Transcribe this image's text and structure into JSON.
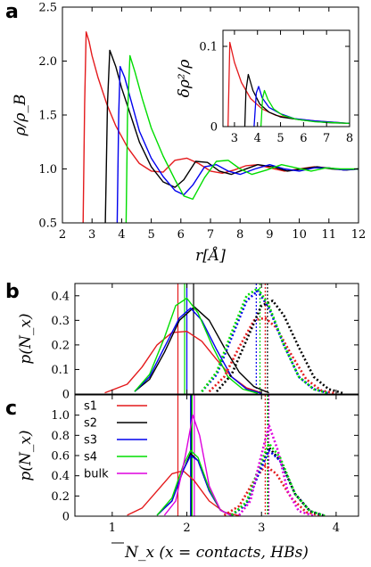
{
  "colors": {
    "s1": "#e41a1c",
    "s2": "#000000",
    "s3": "#0000ee",
    "s4": "#00dd00",
    "bulk": "#dd00dd"
  },
  "panel_labels": [
    "a",
    "b",
    "c"
  ],
  "axis_labels": {
    "a_y": "ρ/ρ_B",
    "a_x": "r[Å]",
    "inset_y": "δρ²/ρ",
    "b_y": "p(N_x)",
    "c_y": "p(N_x)",
    "c_x": "N_x (x = contacts, HBs)"
  },
  "chart_data": [
    {
      "id": "a",
      "type": "line",
      "xlabel": "r[Å]",
      "ylabel": "ρ/ρB",
      "xlim": [
        2,
        12
      ],
      "ylim": [
        0.5,
        2.5
      ],
      "xticks": [
        "2",
        "3",
        "4",
        "5",
        "6",
        "7",
        "8",
        "9",
        "10",
        "11",
        "12"
      ],
      "yticks": [
        "0.5",
        "1.0",
        "1.5",
        "2.0",
        "2.5"
      ],
      "series": [
        {
          "key": "s1",
          "x": [
            2.7,
            2.75,
            2.8,
            2.9,
            3.0,
            3.2,
            3.5,
            3.8,
            4.2,
            4.6,
            5.0,
            5.4,
            5.8,
            6.2,
            6.6,
            7.0,
            7.4,
            7.8,
            8.2,
            8.6,
            9.0,
            9.5,
            10.0,
            10.5,
            11.0,
            11.5,
            12.0
          ],
          "y": [
            0.5,
            1.6,
            2.27,
            2.18,
            2.05,
            1.85,
            1.6,
            1.4,
            1.2,
            1.05,
            0.98,
            0.97,
            1.08,
            1.1,
            1.05,
            0.98,
            0.96,
            0.99,
            1.03,
            1.04,
            1.01,
            0.98,
            1.0,
            1.02,
            1.01,
            0.99,
            1.0
          ]
        },
        {
          "key": "s2",
          "x": [
            3.45,
            3.52,
            3.6,
            3.8,
            4.0,
            4.3,
            4.6,
            5.0,
            5.4,
            5.8,
            6.1,
            6.5,
            6.9,
            7.3,
            7.7,
            8.1,
            8.6,
            9.1,
            9.6,
            10.1,
            10.6,
            11.1,
            11.6,
            12.0
          ],
          "y": [
            0.5,
            1.6,
            2.1,
            1.95,
            1.75,
            1.5,
            1.25,
            1.02,
            0.88,
            0.83,
            0.9,
            1.07,
            1.06,
            0.98,
            0.95,
            0.99,
            1.04,
            1.02,
            0.98,
            1.0,
            1.02,
            1.0,
            0.99,
            1.0
          ]
        },
        {
          "key": "s3",
          "x": [
            3.85,
            3.9,
            3.95,
            4.1,
            4.3,
            4.6,
            5.0,
            5.4,
            5.8,
            6.1,
            6.4,
            6.8,
            7.2,
            7.6,
            8.0,
            8.5,
            9.0,
            9.5,
            10.0,
            10.5,
            11.0,
            11.5,
            12.0
          ],
          "y": [
            0.5,
            1.5,
            1.95,
            1.85,
            1.65,
            1.35,
            1.1,
            0.93,
            0.8,
            0.76,
            0.85,
            1.02,
            1.04,
            0.98,
            0.95,
            1.0,
            1.04,
            1.0,
            0.98,
            1.01,
            1.01,
            0.99,
            1.0
          ]
        },
        {
          "key": "s4",
          "x": [
            4.15,
            4.2,
            4.28,
            4.45,
            4.7,
            5.0,
            5.4,
            5.8,
            6.1,
            6.4,
            6.8,
            7.2,
            7.6,
            8.0,
            8.4,
            8.9,
            9.4,
            9.9,
            10.4,
            10.9,
            11.4,
            12.0
          ],
          "y": [
            0.5,
            1.5,
            2.05,
            1.9,
            1.65,
            1.38,
            1.12,
            0.9,
            0.75,
            0.72,
            0.92,
            1.07,
            1.08,
            1.0,
            0.95,
            0.99,
            1.04,
            1.01,
            0.98,
            1.01,
            1.0,
            1.0
          ]
        }
      ]
    },
    {
      "id": "a-inset",
      "type": "line",
      "ylabel": "δρ²/ρ",
      "xlim": [
        2.5,
        8
      ],
      "ylim": [
        0,
        0.12
      ],
      "xticks": [
        "3",
        "4",
        "5",
        "6",
        "7",
        "8"
      ],
      "yticks": [
        "0",
        "0.1"
      ],
      "series": [
        {
          "key": "s1",
          "x": [
            2.72,
            2.8,
            3.0,
            3.3,
            3.7,
            4.2,
            4.8,
            5.5,
            6.5,
            8.0
          ],
          "y": [
            0,
            0.105,
            0.08,
            0.055,
            0.035,
            0.022,
            0.014,
            0.01,
            0.007,
            0.004
          ]
        },
        {
          "key": "s2",
          "x": [
            3.45,
            3.5,
            3.6,
            3.8,
            4.1,
            4.5,
            5.0,
            6.0,
            7.0,
            8.0
          ],
          "y": [
            0,
            0.045,
            0.065,
            0.045,
            0.028,
            0.018,
            0.012,
            0.008,
            0.005,
            0.004
          ]
        },
        {
          "key": "s3",
          "x": [
            3.85,
            3.95,
            4.05,
            4.2,
            4.5,
            5.0,
            5.6,
            6.5,
            8.0
          ],
          "y": [
            0,
            0.042,
            0.05,
            0.036,
            0.024,
            0.016,
            0.01,
            0.007,
            0.004
          ]
        },
        {
          "key": "s4",
          "x": [
            4.15,
            4.22,
            4.3,
            4.45,
            4.7,
            5.1,
            5.7,
            6.5,
            8.0
          ],
          "y": [
            0,
            0.035,
            0.045,
            0.034,
            0.022,
            0.014,
            0.009,
            0.006,
            0.004
          ]
        }
      ]
    },
    {
      "id": "b",
      "type": "line",
      "ylabel": "p(Nx)",
      "xlim": [
        0.5,
        4.3
      ],
      "ylim": [
        0,
        0.45
      ],
      "yticks": [
        "0",
        "0.1",
        "0.2",
        "0.3",
        "0.4"
      ],
      "series": [
        {
          "key": "s1",
          "style": "solid",
          "x": [
            0.9,
            1.2,
            1.4,
            1.6,
            1.8,
            2.0,
            2.2,
            2.4,
            2.6,
            2.8,
            3.0
          ],
          "y": [
            0.005,
            0.04,
            0.11,
            0.2,
            0.25,
            0.255,
            0.215,
            0.14,
            0.07,
            0.025,
            0.005
          ]
        },
        {
          "key": "s2",
          "style": "solid",
          "x": [
            1.3,
            1.5,
            1.7,
            1.9,
            2.1,
            2.3,
            2.5,
            2.7,
            2.9,
            3.1
          ],
          "y": [
            0.01,
            0.06,
            0.17,
            0.3,
            0.355,
            0.3,
            0.19,
            0.09,
            0.03,
            0.005
          ]
        },
        {
          "key": "s3",
          "style": "solid",
          "x": [
            1.3,
            1.5,
            1.7,
            1.9,
            2.05,
            2.2,
            2.4,
            2.6,
            2.8,
            3.0
          ],
          "y": [
            0.01,
            0.07,
            0.19,
            0.31,
            0.35,
            0.3,
            0.18,
            0.07,
            0.02,
            0.003
          ]
        },
        {
          "key": "s4",
          "style": "solid",
          "x": [
            1.3,
            1.5,
            1.7,
            1.85,
            2.0,
            2.15,
            2.35,
            2.55,
            2.75,
            2.95
          ],
          "y": [
            0.01,
            0.08,
            0.23,
            0.36,
            0.39,
            0.33,
            0.19,
            0.07,
            0.02,
            0.003
          ]
        },
        {
          "key": "s1",
          "style": "dotted",
          "x": [
            2.3,
            2.5,
            2.7,
            2.9,
            3.05,
            3.2,
            3.4,
            3.6,
            3.8,
            4.0
          ],
          "y": [
            0.01,
            0.07,
            0.19,
            0.3,
            0.31,
            0.27,
            0.16,
            0.06,
            0.015,
            0.002
          ]
        },
        {
          "key": "s2",
          "style": "dotted",
          "x": [
            2.4,
            2.6,
            2.8,
            3.0,
            3.15,
            3.3,
            3.5,
            3.7,
            3.9,
            4.1
          ],
          "y": [
            0.01,
            0.08,
            0.22,
            0.36,
            0.38,
            0.32,
            0.19,
            0.07,
            0.02,
            0.003
          ]
        },
        {
          "key": "s3",
          "style": "dotted",
          "x": [
            2.2,
            2.4,
            2.6,
            2.8,
            2.95,
            3.1,
            3.3,
            3.5,
            3.7,
            3.9
          ],
          "y": [
            0.01,
            0.08,
            0.23,
            0.38,
            0.42,
            0.35,
            0.2,
            0.07,
            0.02,
            0.003
          ]
        },
        {
          "key": "s4",
          "style": "dotted",
          "x": [
            2.2,
            2.4,
            2.6,
            2.8,
            2.95,
            3.1,
            3.3,
            3.5,
            3.7,
            3.9
          ],
          "y": [
            0.01,
            0.09,
            0.25,
            0.4,
            0.43,
            0.36,
            0.2,
            0.07,
            0.02,
            0.003
          ]
        }
      ],
      "vlines": [
        {
          "key": "s1",
          "x": 1.88
        },
        {
          "key": "s2",
          "x": 2.09
        },
        {
          "key": "s3",
          "x": 2.0
        },
        {
          "key": "s4",
          "x": 1.97
        },
        {
          "key": "s1",
          "x": 3.05,
          "dotted": true
        },
        {
          "key": "s2",
          "x": 3.08,
          "dotted": true
        },
        {
          "key": "s3",
          "x": 2.93,
          "dotted": true
        },
        {
          "key": "s4",
          "x": 2.98,
          "dotted": true
        }
      ]
    },
    {
      "id": "c",
      "type": "line",
      "xlabel": "N_x (x = contacts, HBs)",
      "ylabel": "p(Nx)",
      "xlim": [
        0.5,
        4.3
      ],
      "ylim": [
        0,
        1.2
      ],
      "xticks": [
        "1",
        "2",
        "3",
        "4"
      ],
      "yticks": [
        "0",
        "0.2",
        "0.4",
        "0.6",
        "0.8",
        "1.0"
      ],
      "legend": [
        "s1",
        "s2",
        "s3",
        "s4",
        "bulk"
      ],
      "series": [
        {
          "key": "s1",
          "style": "solid",
          "x": [
            1.2,
            1.4,
            1.6,
            1.8,
            1.95,
            2.1,
            2.3,
            2.5,
            2.7
          ],
          "y": [
            0.01,
            0.08,
            0.25,
            0.42,
            0.45,
            0.35,
            0.15,
            0.04,
            0.005
          ]
        },
        {
          "key": "s2",
          "style": "solid",
          "x": [
            1.6,
            1.8,
            1.95,
            2.05,
            2.15,
            2.3,
            2.45,
            2.6
          ],
          "y": [
            0.01,
            0.15,
            0.45,
            0.62,
            0.55,
            0.25,
            0.06,
            0.005
          ]
        },
        {
          "key": "s3",
          "style": "solid",
          "x": [
            1.6,
            1.8,
            1.95,
            2.05,
            2.15,
            2.3,
            2.45,
            2.6
          ],
          "y": [
            0.01,
            0.15,
            0.45,
            0.6,
            0.55,
            0.25,
            0.06,
            0.005
          ]
        },
        {
          "key": "s4",
          "style": "solid",
          "x": [
            1.6,
            1.8,
            1.95,
            2.05,
            2.15,
            2.3,
            2.45,
            2.6
          ],
          "y": [
            0.01,
            0.18,
            0.5,
            0.65,
            0.58,
            0.27,
            0.06,
            0.005
          ]
        },
        {
          "key": "bulk",
          "style": "solid",
          "x": [
            1.7,
            1.85,
            1.98,
            2.08,
            2.17,
            2.3,
            2.45,
            2.6
          ],
          "y": [
            0.01,
            0.15,
            0.6,
            1.0,
            0.8,
            0.3,
            0.06,
            0.005
          ]
        },
        {
          "key": "s1",
          "style": "dotted",
          "x": [
            2.5,
            2.7,
            2.9,
            3.05,
            3.2,
            3.4,
            3.6,
            3.8
          ],
          "y": [
            0.01,
            0.1,
            0.35,
            0.5,
            0.42,
            0.18,
            0.04,
            0.003
          ]
        },
        {
          "key": "s2",
          "style": "dotted",
          "x": [
            2.6,
            2.8,
            2.95,
            3.1,
            3.25,
            3.45,
            3.65,
            3.85
          ],
          "y": [
            0.01,
            0.12,
            0.4,
            0.68,
            0.55,
            0.22,
            0.05,
            0.003
          ]
        },
        {
          "key": "s3",
          "style": "dotted",
          "x": [
            2.6,
            2.8,
            2.95,
            3.1,
            3.25,
            3.45,
            3.65,
            3.85
          ],
          "y": [
            0.01,
            0.12,
            0.4,
            0.65,
            0.55,
            0.22,
            0.05,
            0.003
          ]
        },
        {
          "key": "s4",
          "style": "dotted",
          "x": [
            2.6,
            2.8,
            2.95,
            3.1,
            3.25,
            3.45,
            3.65,
            3.85
          ],
          "y": [
            0.01,
            0.14,
            0.45,
            0.72,
            0.58,
            0.22,
            0.05,
            0.003
          ]
        },
        {
          "key": "bulk",
          "style": "dotted",
          "x": [
            2.7,
            2.85,
            2.98,
            3.1,
            3.22,
            3.35,
            3.5,
            3.7
          ],
          "y": [
            0.01,
            0.15,
            0.55,
            0.9,
            0.65,
            0.25,
            0.05,
            0.003
          ]
        }
      ],
      "vlines": [
        {
          "key": "s1",
          "x": 1.88
        },
        {
          "key": "s2",
          "x": 2.06
        },
        {
          "key": "s3",
          "x": 2.05
        },
        {
          "key": "s4",
          "x": 2.07
        },
        {
          "key": "bulk",
          "x": 2.1
        },
        {
          "key": "s1",
          "x": 3.05,
          "dotted": true
        },
        {
          "key": "s2",
          "x": 3.09,
          "dotted": true
        },
        {
          "key": "s4",
          "x": 3.08,
          "dotted": true
        },
        {
          "key": "bulk",
          "x": 3.1,
          "dotted": true
        }
      ]
    }
  ]
}
